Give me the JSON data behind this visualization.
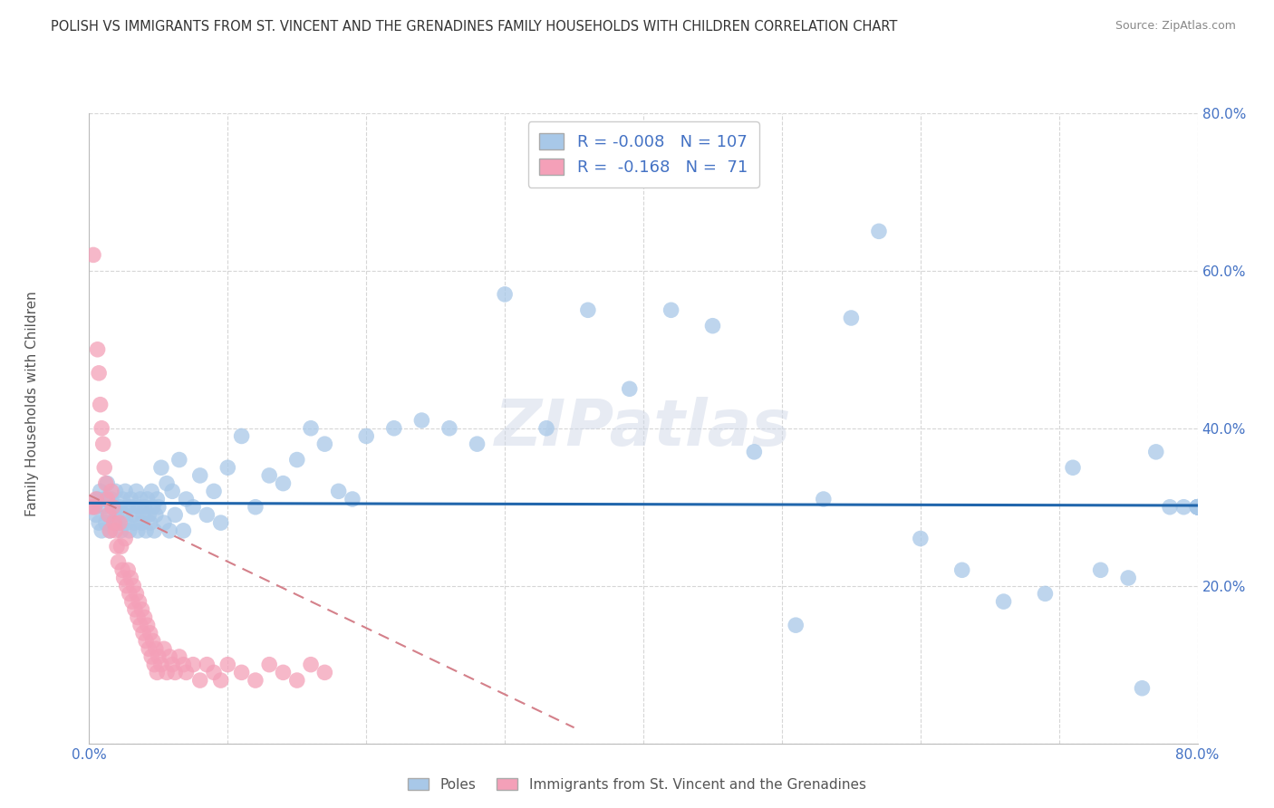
{
  "title": "POLISH VS IMMIGRANTS FROM ST. VINCENT AND THE GRENADINES FAMILY HOUSEHOLDS WITH CHILDREN CORRELATION CHART",
  "source": "Source: ZipAtlas.com",
  "ylabel": "Family Households with Children",
  "xlim": [
    0.0,
    0.8
  ],
  "ylim": [
    0.0,
    0.8
  ],
  "blue_color": "#a8c8e8",
  "pink_color": "#f4a0b8",
  "trend_blue_color": "#2166ac",
  "trend_pink_color": "#d4808a",
  "legend_R_blue": "-0.008",
  "legend_N_blue": "107",
  "legend_R_pink": "-0.168",
  "legend_N_pink": "71",
  "background_color": "#ffffff",
  "grid_color": "#cccccc",
  "tick_color": "#4472c4",
  "ylabel_color": "#555555",
  "title_color": "#333333",
  "source_color": "#888888",
  "watermark": "ZIPatlas",
  "blue_scatter_x": [
    0.004,
    0.005,
    0.006,
    0.007,
    0.008,
    0.009,
    0.01,
    0.011,
    0.012,
    0.013,
    0.014,
    0.015,
    0.016,
    0.017,
    0.018,
    0.019,
    0.02,
    0.021,
    0.022,
    0.023,
    0.024,
    0.025,
    0.026,
    0.027,
    0.028,
    0.029,
    0.03,
    0.031,
    0.032,
    0.033,
    0.034,
    0.035,
    0.036,
    0.037,
    0.038,
    0.039,
    0.04,
    0.041,
    0.042,
    0.043,
    0.044,
    0.045,
    0.046,
    0.047,
    0.048,
    0.049,
    0.05,
    0.052,
    0.054,
    0.056,
    0.058,
    0.06,
    0.062,
    0.065,
    0.068,
    0.07,
    0.075,
    0.08,
    0.085,
    0.09,
    0.095,
    0.1,
    0.11,
    0.12,
    0.13,
    0.14,
    0.15,
    0.16,
    0.17,
    0.18,
    0.19,
    0.2,
    0.22,
    0.24,
    0.26,
    0.28,
    0.3,
    0.33,
    0.36,
    0.39,
    0.42,
    0.45,
    0.48,
    0.51,
    0.53,
    0.55,
    0.57,
    0.6,
    0.63,
    0.66,
    0.69,
    0.71,
    0.73,
    0.75,
    0.76,
    0.77,
    0.78,
    0.79,
    0.8,
    0.8,
    0.8,
    0.8,
    0.8,
    0.8,
    0.8,
    0.8,
    0.8
  ],
  "blue_scatter_y": [
    0.3,
    0.29,
    0.31,
    0.28,
    0.32,
    0.27,
    0.3,
    0.31,
    0.28,
    0.33,
    0.29,
    0.27,
    0.31,
    0.3,
    0.28,
    0.32,
    0.29,
    0.28,
    0.3,
    0.27,
    0.31,
    0.29,
    0.32,
    0.28,
    0.3,
    0.27,
    0.31,
    0.3,
    0.29,
    0.28,
    0.32,
    0.27,
    0.3,
    0.31,
    0.28,
    0.29,
    0.3,
    0.27,
    0.31,
    0.29,
    0.28,
    0.32,
    0.3,
    0.27,
    0.29,
    0.31,
    0.3,
    0.35,
    0.28,
    0.33,
    0.27,
    0.32,
    0.29,
    0.36,
    0.27,
    0.31,
    0.3,
    0.34,
    0.29,
    0.32,
    0.28,
    0.35,
    0.39,
    0.3,
    0.34,
    0.33,
    0.36,
    0.4,
    0.38,
    0.32,
    0.31,
    0.39,
    0.4,
    0.41,
    0.4,
    0.38,
    0.57,
    0.4,
    0.55,
    0.45,
    0.55,
    0.53,
    0.37,
    0.15,
    0.31,
    0.54,
    0.65,
    0.26,
    0.22,
    0.18,
    0.19,
    0.35,
    0.22,
    0.21,
    0.07,
    0.37,
    0.3,
    0.3,
    0.3,
    0.3,
    0.3,
    0.3,
    0.3,
    0.3,
    0.3,
    0.3,
    0.3
  ],
  "pink_scatter_x": [
    0.002,
    0.003,
    0.004,
    0.005,
    0.006,
    0.007,
    0.008,
    0.009,
    0.01,
    0.011,
    0.012,
    0.013,
    0.014,
    0.015,
    0.016,
    0.017,
    0.018,
    0.019,
    0.02,
    0.021,
    0.022,
    0.023,
    0.024,
    0.025,
    0.026,
    0.027,
    0.028,
    0.029,
    0.03,
    0.031,
    0.032,
    0.033,
    0.034,
    0.035,
    0.036,
    0.037,
    0.038,
    0.039,
    0.04,
    0.041,
    0.042,
    0.043,
    0.044,
    0.045,
    0.046,
    0.047,
    0.048,
    0.049,
    0.05,
    0.052,
    0.054,
    0.056,
    0.058,
    0.06,
    0.062,
    0.065,
    0.068,
    0.07,
    0.075,
    0.08,
    0.085,
    0.09,
    0.095,
    0.1,
    0.11,
    0.12,
    0.13,
    0.14,
    0.15,
    0.16,
    0.17
  ],
  "pink_scatter_y": [
    0.3,
    0.62,
    0.3,
    0.31,
    0.5,
    0.47,
    0.43,
    0.4,
    0.38,
    0.35,
    0.33,
    0.31,
    0.29,
    0.27,
    0.32,
    0.3,
    0.28,
    0.27,
    0.25,
    0.23,
    0.28,
    0.25,
    0.22,
    0.21,
    0.26,
    0.2,
    0.22,
    0.19,
    0.21,
    0.18,
    0.2,
    0.17,
    0.19,
    0.16,
    0.18,
    0.15,
    0.17,
    0.14,
    0.16,
    0.13,
    0.15,
    0.12,
    0.14,
    0.11,
    0.13,
    0.1,
    0.12,
    0.09,
    0.11,
    0.1,
    0.12,
    0.09,
    0.11,
    0.1,
    0.09,
    0.11,
    0.1,
    0.09,
    0.1,
    0.08,
    0.1,
    0.09,
    0.08,
    0.1,
    0.09,
    0.08,
    0.1,
    0.09,
    0.08,
    0.1,
    0.09
  ],
  "blue_trend_x": [
    0.0,
    0.8
  ],
  "blue_trend_y": [
    0.305,
    0.302
  ],
  "pink_trend_x": [
    0.0,
    0.35
  ],
  "pink_trend_y": [
    0.315,
    0.02
  ]
}
